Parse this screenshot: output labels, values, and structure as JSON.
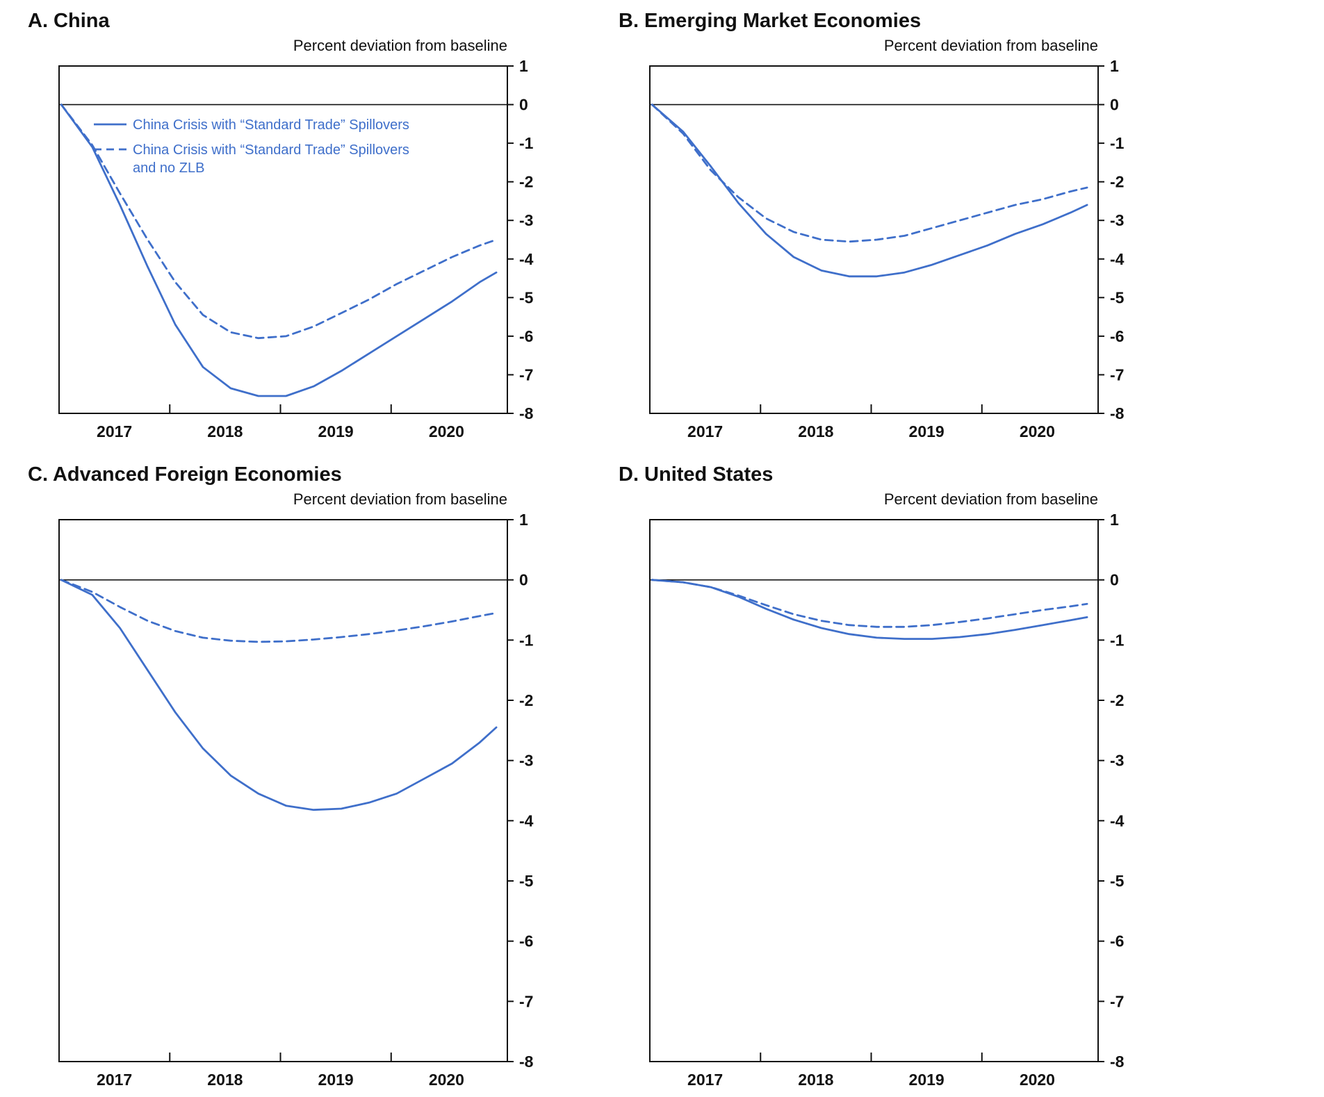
{
  "style": {
    "line_color": "#3f6fca",
    "axis_color": "#111111",
    "legend_text_color": "#3f6fca"
  },
  "chart_data": [
    {
      "type": "line",
      "title": "A. China",
      "ylabel": "Percent deviation from baseline",
      "xlabel": "",
      "xlim": [
        2016.5,
        2020.55
      ],
      "ylim": [
        -8,
        1
      ],
      "yticks": [
        1,
        0,
        -1,
        -2,
        -3,
        -4,
        -5,
        -6,
        -7,
        -8
      ],
      "xticks": [
        2017,
        2018,
        2019,
        2020
      ],
      "xminor": [
        2017.5,
        2018.5,
        2019.5
      ],
      "grid": false,
      "legend": {
        "position": "upper-left-inside",
        "entries": [
          {
            "style": "solid",
            "lines": [
              "China Crisis with “Standard Trade” Spillovers"
            ]
          },
          {
            "style": "dashed",
            "lines": [
              "China Crisis with “Standard Trade” Spillovers",
              "and no ZLB"
            ]
          }
        ]
      },
      "series": [
        {
          "name": "China Crisis with “Standard Trade” Spillovers",
          "style": "solid",
          "x": [
            2016.52,
            2016.8,
            2017.05,
            2017.3,
            2017.55,
            2017.8,
            2018.05,
            2018.3,
            2018.55,
            2018.8,
            2019.05,
            2019.3,
            2019.55,
            2019.8,
            2020.05,
            2020.3,
            2020.45
          ],
          "y": [
            0,
            -1.1,
            -2.6,
            -4.2,
            -5.7,
            -6.8,
            -7.35,
            -7.55,
            -7.55,
            -7.3,
            -6.9,
            -6.45,
            -6.0,
            -5.55,
            -5.1,
            -4.6,
            -4.35
          ]
        },
        {
          "name": "China Crisis with “Standard Trade” Spillovers and no ZLB",
          "style": "dashed",
          "x": [
            2016.52,
            2016.8,
            2017.05,
            2017.3,
            2017.55,
            2017.8,
            2018.05,
            2018.3,
            2018.55,
            2018.8,
            2019.05,
            2019.3,
            2019.55,
            2019.8,
            2020.05,
            2020.3,
            2020.45
          ],
          "y": [
            0,
            -1.05,
            -2.3,
            -3.5,
            -4.6,
            -5.45,
            -5.9,
            -6.05,
            -6.0,
            -5.75,
            -5.4,
            -5.05,
            -4.65,
            -4.3,
            -3.95,
            -3.65,
            -3.5
          ]
        }
      ]
    },
    {
      "type": "line",
      "title": "B. Emerging Market Economies",
      "ylabel": "Percent deviation from baseline",
      "xlabel": "",
      "xlim": [
        2016.5,
        2020.55
      ],
      "ylim": [
        -8,
        1
      ],
      "yticks": [
        1,
        0,
        -1,
        -2,
        -3,
        -4,
        -5,
        -6,
        -7,
        -8
      ],
      "xticks": [
        2017,
        2018,
        2019,
        2020
      ],
      "xminor": [
        2017.5,
        2018.5,
        2019.5
      ],
      "grid": false,
      "series": [
        {
          "name": "China Crisis with “Standard Trade” Spillovers",
          "style": "solid",
          "x": [
            2016.52,
            2016.8,
            2017.05,
            2017.3,
            2017.55,
            2017.8,
            2018.05,
            2018.3,
            2018.55,
            2018.8,
            2019.05,
            2019.3,
            2019.55,
            2019.8,
            2020.05,
            2020.3,
            2020.45
          ],
          "y": [
            0,
            -0.7,
            -1.6,
            -2.55,
            -3.35,
            -3.95,
            -4.3,
            -4.45,
            -4.45,
            -4.35,
            -4.15,
            -3.9,
            -3.65,
            -3.35,
            -3.1,
            -2.8,
            -2.6
          ]
        },
        {
          "name": "China Crisis with “Standard Trade” Spillovers and no ZLB",
          "style": "dashed",
          "x": [
            2016.52,
            2016.8,
            2017.05,
            2017.3,
            2017.55,
            2017.8,
            2018.05,
            2018.3,
            2018.55,
            2018.8,
            2019.05,
            2019.3,
            2019.55,
            2019.8,
            2020.05,
            2020.3,
            2020.45
          ],
          "y": [
            0,
            -0.75,
            -1.7,
            -2.4,
            -2.95,
            -3.3,
            -3.5,
            -3.55,
            -3.5,
            -3.4,
            -3.2,
            -3.0,
            -2.8,
            -2.6,
            -2.45,
            -2.25,
            -2.15
          ]
        }
      ]
    },
    {
      "type": "line",
      "title": "C. Advanced Foreign Economies",
      "ylabel": "Percent deviation from baseline",
      "xlabel": "",
      "xlim": [
        2016.5,
        2020.55
      ],
      "ylim": [
        -8,
        1
      ],
      "yticks": [
        1,
        0,
        -1,
        -2,
        -3,
        -4,
        -5,
        -6,
        -7,
        -8
      ],
      "xticks": [
        2017,
        2018,
        2019,
        2020
      ],
      "xminor": [
        2017.5,
        2018.5,
        2019.5
      ],
      "grid": false,
      "series": [
        {
          "name": "China Crisis with “Standard Trade” Spillovers",
          "style": "solid",
          "x": [
            2016.52,
            2016.8,
            2017.05,
            2017.3,
            2017.55,
            2017.8,
            2018.05,
            2018.3,
            2018.55,
            2018.8,
            2019.05,
            2019.3,
            2019.55,
            2019.8,
            2020.05,
            2020.3,
            2020.45
          ],
          "y": [
            0,
            -0.25,
            -0.8,
            -1.5,
            -2.2,
            -2.8,
            -3.25,
            -3.55,
            -3.75,
            -3.82,
            -3.8,
            -3.7,
            -3.55,
            -3.3,
            -3.05,
            -2.7,
            -2.45
          ]
        },
        {
          "name": "China Crisis with “Standard Trade” Spillovers and no ZLB",
          "style": "dashed",
          "x": [
            2016.52,
            2016.8,
            2017.05,
            2017.3,
            2017.55,
            2017.8,
            2018.05,
            2018.3,
            2018.55,
            2018.8,
            2019.05,
            2019.3,
            2019.55,
            2019.8,
            2020.05,
            2020.3,
            2020.45
          ],
          "y": [
            0,
            -0.2,
            -0.45,
            -0.68,
            -0.85,
            -0.96,
            -1.01,
            -1.03,
            -1.02,
            -0.99,
            -0.95,
            -0.9,
            -0.84,
            -0.77,
            -0.69,
            -0.6,
            -0.55
          ]
        }
      ]
    },
    {
      "type": "line",
      "title": "D. United States",
      "ylabel": "Percent deviation from baseline",
      "xlabel": "",
      "xlim": [
        2016.5,
        2020.55
      ],
      "ylim": [
        -8,
        1
      ],
      "yticks": [
        1,
        0,
        -1,
        -2,
        -3,
        -4,
        -5,
        -6,
        -7,
        -8
      ],
      "xticks": [
        2017,
        2018,
        2019,
        2020
      ],
      "xminor": [
        2017.5,
        2018.5,
        2019.5
      ],
      "grid": false,
      "series": [
        {
          "name": "China Crisis with “Standard Trade” Spillovers",
          "style": "solid",
          "x": [
            2016.52,
            2016.8,
            2017.05,
            2017.3,
            2017.55,
            2017.8,
            2018.05,
            2018.3,
            2018.55,
            2018.8,
            2019.05,
            2019.3,
            2019.55,
            2019.8,
            2020.05,
            2020.3,
            2020.45
          ],
          "y": [
            0,
            -0.04,
            -0.12,
            -0.28,
            -0.48,
            -0.66,
            -0.8,
            -0.9,
            -0.96,
            -0.98,
            -0.98,
            -0.95,
            -0.9,
            -0.83,
            -0.75,
            -0.67,
            -0.62
          ]
        },
        {
          "name": "China Crisis with “Standard Trade” Spillovers and no ZLB",
          "style": "dashed",
          "x": [
            2016.52,
            2016.8,
            2017.05,
            2017.3,
            2017.55,
            2017.8,
            2018.05,
            2018.3,
            2018.55,
            2018.8,
            2019.05,
            2019.3,
            2019.55,
            2019.8,
            2020.05,
            2020.3,
            2020.45
          ],
          "y": [
            0,
            -0.04,
            -0.12,
            -0.26,
            -0.42,
            -0.57,
            -0.68,
            -0.75,
            -0.78,
            -0.78,
            -0.75,
            -0.7,
            -0.64,
            -0.57,
            -0.5,
            -0.44,
            -0.4
          ]
        }
      ]
    }
  ]
}
